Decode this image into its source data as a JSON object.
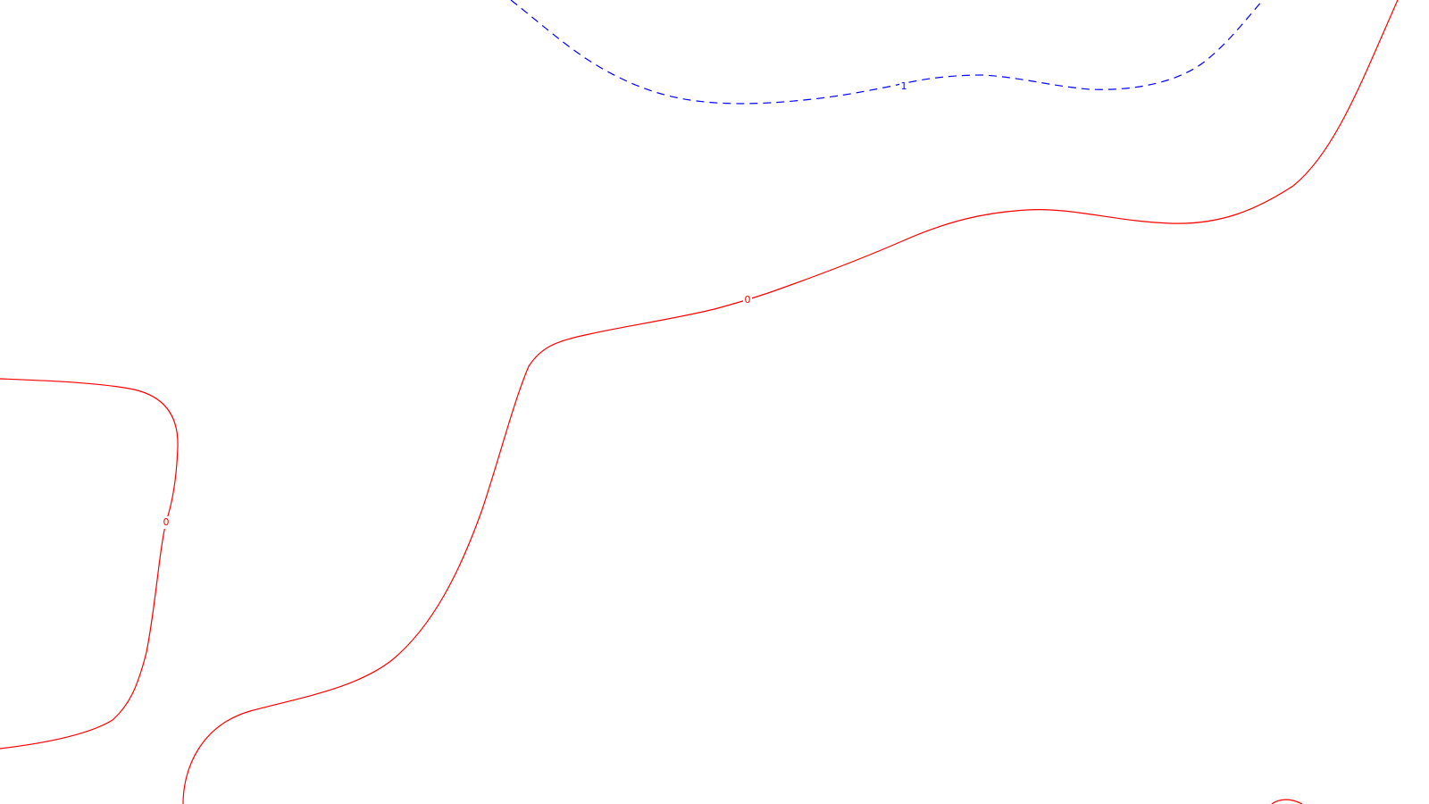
{
  "colors": {
    "background": "#ffffff",
    "zero_level": "#ff0000",
    "one_level": "#0000ff"
  },
  "contours": [
    {
      "level": "1",
      "label": "1",
      "style": "dashed",
      "color": "#0000ff"
    },
    {
      "level": "0",
      "label": "0",
      "style": "solid",
      "color": "#ff0000"
    }
  ]
}
